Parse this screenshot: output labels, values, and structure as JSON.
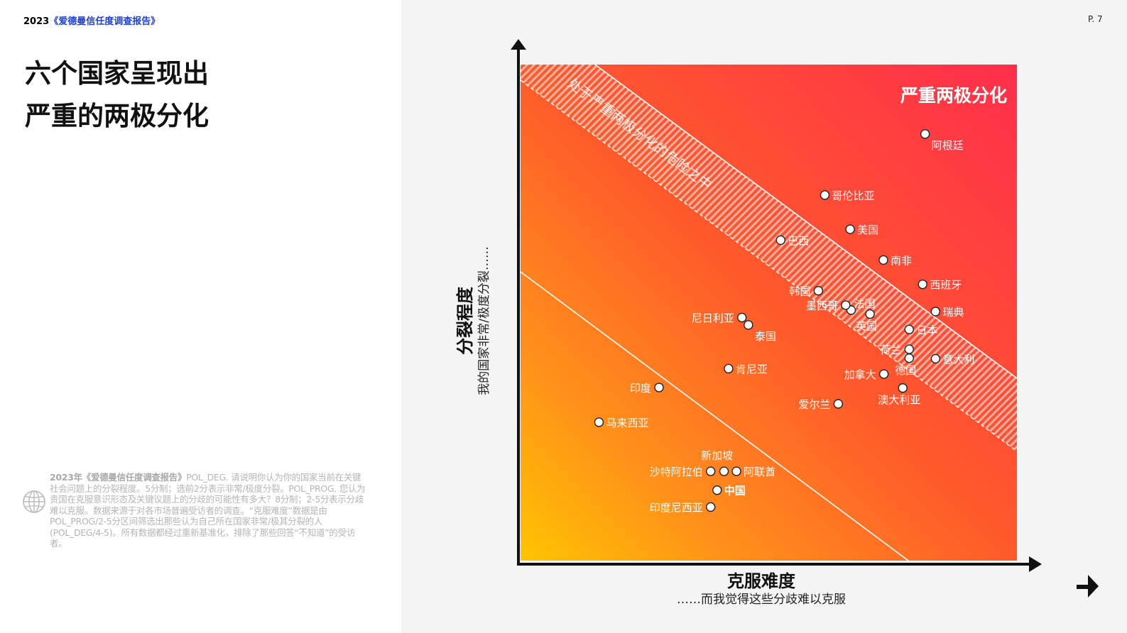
{
  "header": {
    "year": "2023",
    "report_name": "《爱德曼信任度调查报告》",
    "page_number": "P. 7"
  },
  "headline": {
    "line1": "六个国家呈现出",
    "line2": "严重的两极分化"
  },
  "footnote": {
    "bold": "2023年《爱德曼信任度调查报告》",
    "text": "POL_DEG. 请说明你认为你的国家当前在关键社会问题上的分裂程度。5分制；选前2分表示非常/极度分裂。POL_PROG. 您认为贵国在克服意识形态及关键议题上的分歧的可能性有多大？8分制；2-5分表示分歧难以克服。数据来源于对各市场普遍受访者的调查。“克服难度”数据是由POL_PROG/2-5分区间筛选出那些认为自己所在国家非常/极其分裂的人(POL_DEG/4-5)。所有数据都经过重新基准化，排除了那些回答“不知道”的受访者。"
  },
  "colors": {
    "accent_red": "#ff2e4c",
    "accent_orange": "#ff5a2a",
    "accent_yellow": "#ffc400",
    "report_blue": "#1e40d8"
  },
  "chart_data": {
    "type": "scatter",
    "title": "",
    "ylabel": "分裂程度",
    "ylabel_sub": "我的国家非常/极度分裂……",
    "xlabel": "克服难度",
    "xlabel_sub": "……而我觉得这些分歧难以克服",
    "xlim": [
      0,
      100
    ],
    "ylim": [
      0,
      100
    ],
    "zone_severe_label": "严重两极分化",
    "zone_risk_label": "处于严重两极分化的危险之中",
    "points": [
      {
        "name": "阿根廷",
        "x": 81.5,
        "y": 86.0,
        "label_pos": "below-right",
        "bold": false
      },
      {
        "name": "哥伦比亚",
        "x": 61.3,
        "y": 73.7,
        "label_pos": "right",
        "bold": false
      },
      {
        "name": "美国",
        "x": 66.4,
        "y": 66.8,
        "label_pos": "right",
        "bold": false
      },
      {
        "name": "巴西",
        "x": 52.4,
        "y": 64.6,
        "label_pos": "right",
        "bold": false
      },
      {
        "name": "南非",
        "x": 73.1,
        "y": 60.6,
        "label_pos": "right",
        "bold": false
      },
      {
        "name": "西班牙",
        "x": 81.0,
        "y": 55.7,
        "label_pos": "right",
        "bold": false
      },
      {
        "name": "韩国",
        "x": 60.0,
        "y": 54.4,
        "label_pos": "left",
        "bold": false
      },
      {
        "name": "法国",
        "x": 66.6,
        "y": 50.5,
        "label_pos": "above-right",
        "bold": false
      },
      {
        "name": "墨西哥",
        "x": 65.5,
        "y": 51.5,
        "label_pos": "left",
        "bold": false
      },
      {
        "name": "瑞典",
        "x": 83.6,
        "y": 50.2,
        "label_pos": "right",
        "bold": false
      },
      {
        "name": "英国",
        "x": 70.4,
        "y": 49.7,
        "label_pos": "below",
        "bold": false
      },
      {
        "name": "尼日利亚",
        "x": 44.6,
        "y": 49.0,
        "label_pos": "left",
        "bold": false
      },
      {
        "name": "泰国",
        "x": 45.9,
        "y": 47.5,
        "label_pos": "below-right",
        "bold": false
      },
      {
        "name": "日本",
        "x": 78.3,
        "y": 46.6,
        "label_pos": "right",
        "bold": false
      },
      {
        "name": "荷兰",
        "x": 78.3,
        "y": 42.6,
        "label_pos": "left",
        "bold": false
      },
      {
        "name": "意大利",
        "x": 83.6,
        "y": 40.7,
        "label_pos": "right",
        "bold": false
      },
      {
        "name": "德国",
        "x": 78.3,
        "y": 40.8,
        "label_pos": "below",
        "bold": false
      },
      {
        "name": "加拿大",
        "x": 73.2,
        "y": 37.6,
        "label_pos": "left",
        "bold": false
      },
      {
        "name": "肯尼亚",
        "x": 41.9,
        "y": 38.7,
        "label_pos": "right",
        "bold": false
      },
      {
        "name": "澳大利亚",
        "x": 77.0,
        "y": 34.8,
        "label_pos": "below",
        "bold": false
      },
      {
        "name": "印度",
        "x": 27.9,
        "y": 34.9,
        "label_pos": "left",
        "bold": false
      },
      {
        "name": "爱尔兰",
        "x": 64.0,
        "y": 31.6,
        "label_pos": "left",
        "bold": false
      },
      {
        "name": "马来西亚",
        "x": 15.8,
        "y": 27.9,
        "label_pos": "right",
        "bold": false
      },
      {
        "name": "新加坡",
        "x": 41.0,
        "y": 18.0,
        "label_pos": "above",
        "bold": false
      },
      {
        "name": "沙特阿拉伯",
        "x": 38.3,
        "y": 18.0,
        "label_pos": "left",
        "bold": false
      },
      {
        "name": "阿联酋",
        "x": 43.5,
        "y": 18.0,
        "label_pos": "right",
        "bold": false
      },
      {
        "name": "中国",
        "x": 39.6,
        "y": 14.2,
        "label_pos": "right",
        "bold": true
      },
      {
        "name": "印度尼西亚",
        "x": 38.3,
        "y": 10.8,
        "label_pos": "left",
        "bold": false
      }
    ]
  }
}
